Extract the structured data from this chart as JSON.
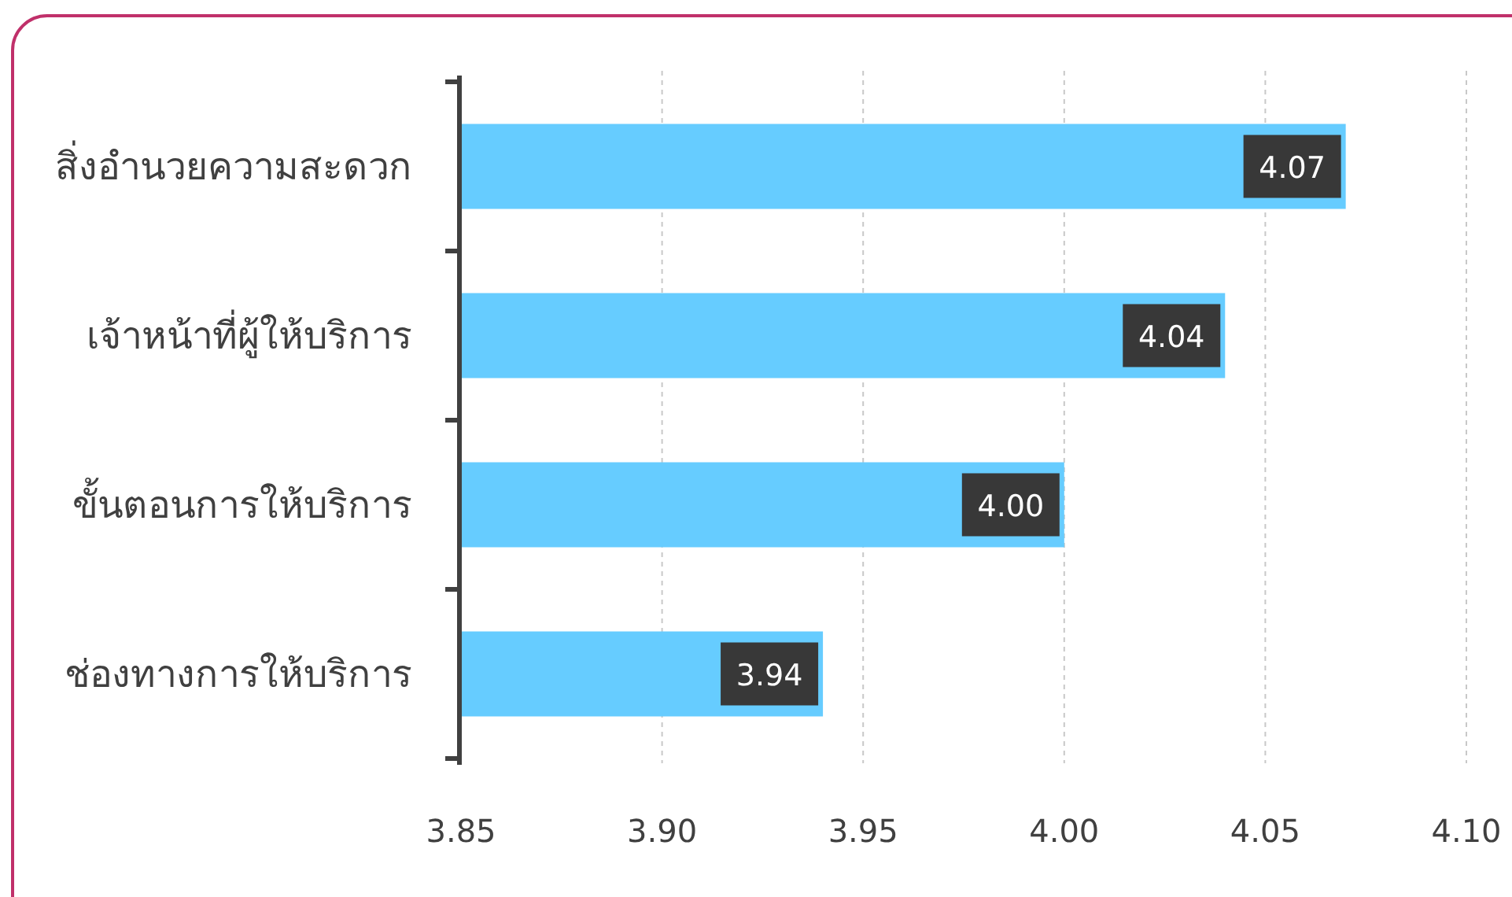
{
  "chart_data": {
    "type": "bar",
    "orientation": "horizontal",
    "categories": [
      "สิ่งอำนวยความสะดวก",
      "เจ้าหน้าที่ผู้ให้บริการ",
      "ขั้นตอนการให้บริการ",
      "ช่องทางการให้บริการ"
    ],
    "values": [
      4.07,
      4.04,
      4.0,
      3.94
    ],
    "color": "#66ccff",
    "xlim": [
      3.85,
      4.1
    ],
    "xticks": [
      {
        "value": 3.85,
        "label": "3.85"
      },
      {
        "value": 3.9,
        "label": "3.90"
      },
      {
        "value": 3.95,
        "label": "3.95"
      },
      {
        "value": 4.0,
        "label": "4.00"
      },
      {
        "value": 4.05,
        "label": "4.05"
      },
      {
        "value": 4.1,
        "label": "4.10"
      }
    ],
    "grid": "x",
    "value_labels": [
      "4.07",
      "4.04",
      "4.00",
      "3.94"
    ]
  }
}
